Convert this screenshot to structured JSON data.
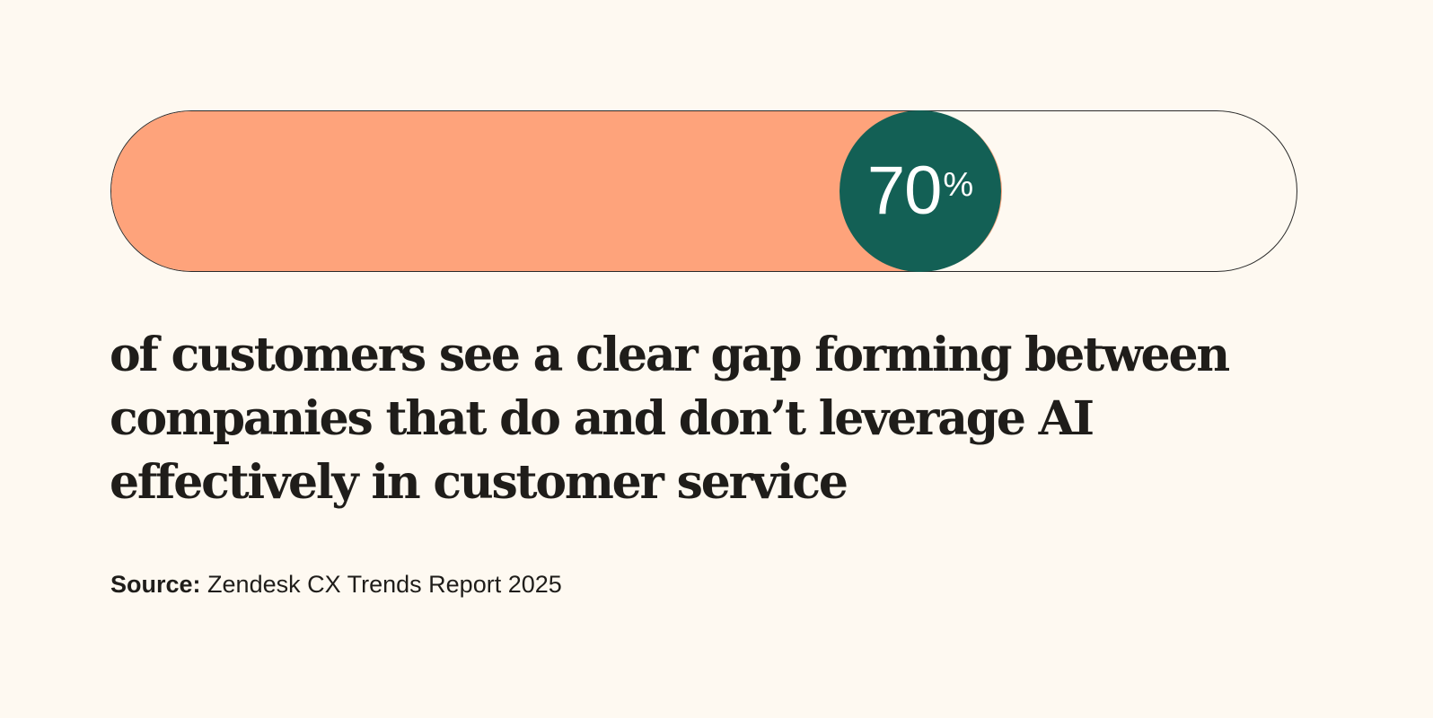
{
  "stat": {
    "value": 70,
    "number_label": "70",
    "percent_sign": "%"
  },
  "colors": {
    "background": "#fef9f1",
    "fill": "#fea37b",
    "badge": "#136055"
  },
  "headline": "of customers see a clear gap forming between companies that do and don’t leverage AI effectively in customer service",
  "source": {
    "label": "Source:",
    "text": "Zendesk CX Trends Report 2025"
  }
}
